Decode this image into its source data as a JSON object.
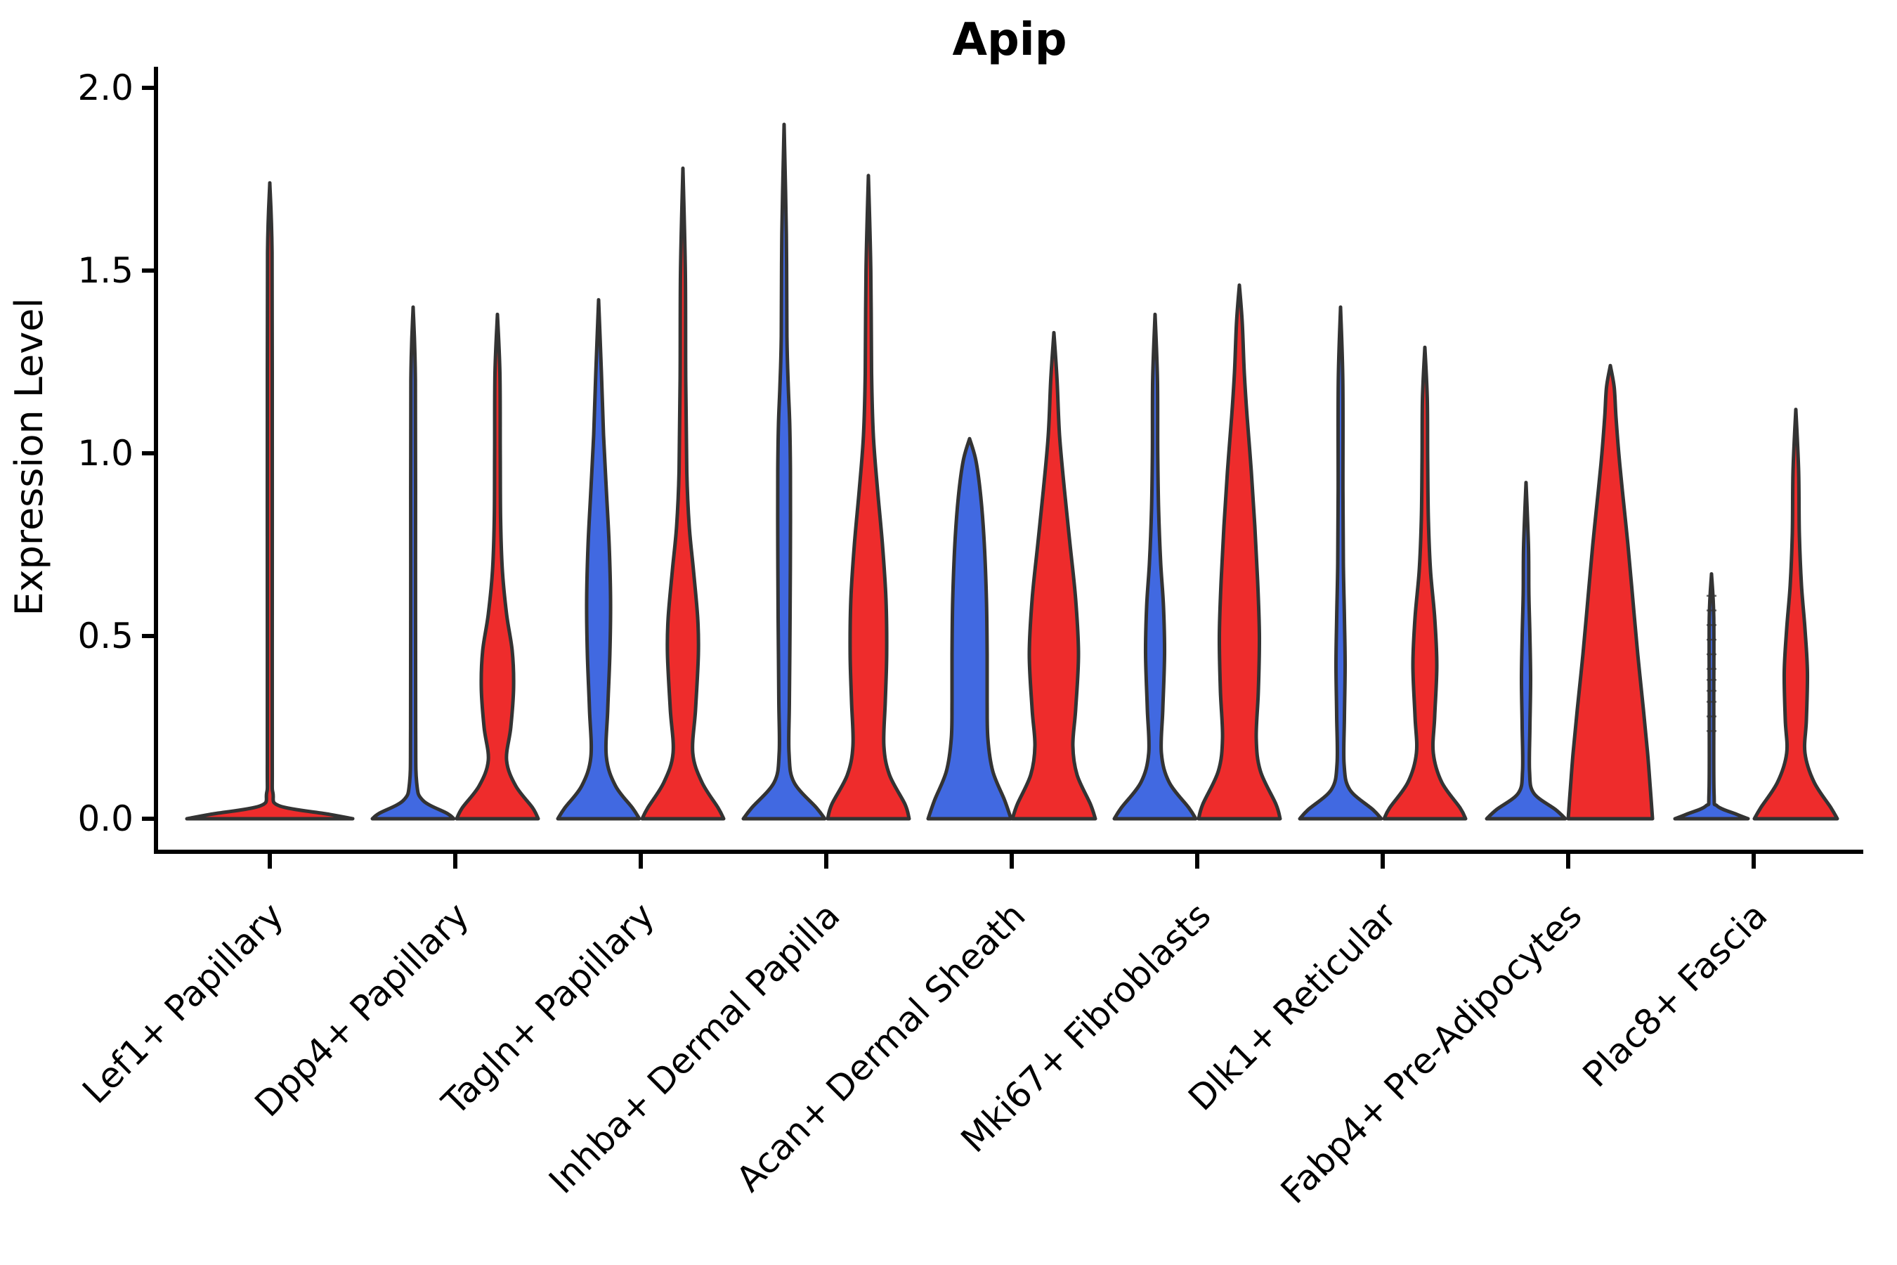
{
  "title": "Apip",
  "axes": {
    "ylabel": "Expression Level",
    "ytick_labels": [
      "0.0",
      "0.5",
      "1.0",
      "1.5",
      "2.0"
    ]
  },
  "chart_data": {
    "type": "violin",
    "title": "Apip",
    "xlabel": "",
    "ylabel": "Expression Level",
    "ylim": [
      0,
      2.05
    ],
    "grid": false,
    "legend": "none",
    "yticks": [
      0,
      0.5,
      1,
      1.5,
      2
    ],
    "ytick_labels": [
      "0.0",
      "0.5",
      "1.0",
      "1.5",
      "2.0"
    ],
    "categories": [
      "Lef1+ Papillary",
      "Dpp4+ Papillary",
      "Tagln+ Papillary",
      "Inhba+ Dermal Papilla",
      "Acan+ Dermal Sheath",
      "Mki67+ Fibroblasts",
      "Dlk1+ Reticular",
      "Fabp4+ Pre-Adipocytes",
      "Plac8+ Fascia"
    ],
    "series": [
      {
        "name": "blue",
        "color": "#4169E1"
      },
      {
        "name": "red",
        "color": "#EE2C2C"
      }
    ],
    "colors": {
      "blue": "#4169E1",
      "red": "#EE2C2C",
      "single": "#EE2C2C"
    },
    "outline_color": "#333333",
    "profile_units": "pairs of [expression_value, half_width_px]",
    "violins": [
      {
        "category_index": 0,
        "side": "single",
        "color": "single",
        "max": 1.74,
        "profile": [
          [
            0,
            118
          ],
          [
            0.012,
            85
          ],
          [
            0.035,
            14
          ],
          [
            0.07,
            4.5
          ],
          [
            0.15,
            3.5
          ],
          [
            0.6,
            3.5
          ],
          [
            1.1,
            3.5
          ],
          [
            1.55,
            3.2
          ],
          [
            1.74,
            0
          ]
        ]
      },
      {
        "category_index": 1,
        "side": "blue",
        "color": "blue",
        "max": 1.4,
        "profile": [
          [
            0,
            58
          ],
          [
            0.015,
            48
          ],
          [
            0.05,
            14
          ],
          [
            0.1,
            5
          ],
          [
            0.25,
            3.6
          ],
          [
            0.7,
            3.4
          ],
          [
            1.2,
            3.2
          ],
          [
            1.4,
            0
          ]
        ]
      },
      {
        "category_index": 1,
        "side": "red",
        "color": "red",
        "max": 1.38,
        "profile": [
          [
            0,
            58
          ],
          [
            0.03,
            50
          ],
          [
            0.09,
            26
          ],
          [
            0.16,
            13
          ],
          [
            0.25,
            19
          ],
          [
            0.36,
            23
          ],
          [
            0.46,
            21
          ],
          [
            0.56,
            13
          ],
          [
            0.68,
            7
          ],
          [
            0.82,
            4.5
          ],
          [
            1.0,
            4
          ],
          [
            1.22,
            3.5
          ],
          [
            1.38,
            0
          ]
        ]
      },
      {
        "category_index": 2,
        "side": "blue",
        "color": "blue",
        "max": 1.42,
        "profile": [
          [
            0,
            58
          ],
          [
            0.03,
            48
          ],
          [
            0.09,
            24
          ],
          [
            0.17,
            11
          ],
          [
            0.3,
            13
          ],
          [
            0.45,
            16
          ],
          [
            0.6,
            17
          ],
          [
            0.75,
            15
          ],
          [
            0.9,
            11
          ],
          [
            1.05,
            7
          ],
          [
            1.22,
            4
          ],
          [
            1.42,
            0
          ]
        ]
      },
      {
        "category_index": 2,
        "side": "red",
        "color": "red",
        "max": 1.78,
        "profile": [
          [
            0,
            58
          ],
          [
            0.03,
            50
          ],
          [
            0.1,
            27
          ],
          [
            0.18,
            14
          ],
          [
            0.3,
            18
          ],
          [
            0.45,
            22
          ],
          [
            0.55,
            21
          ],
          [
            0.68,
            15
          ],
          [
            0.8,
            9
          ],
          [
            0.95,
            5.5
          ],
          [
            1.2,
            4
          ],
          [
            1.5,
            3.4
          ],
          [
            1.78,
            0
          ]
        ]
      },
      {
        "category_index": 3,
        "side": "blue",
        "color": "blue",
        "max": 1.9,
        "profile": [
          [
            0,
            58
          ],
          [
            0.03,
            46
          ],
          [
            0.1,
            14
          ],
          [
            0.18,
            7
          ],
          [
            0.32,
            7.5
          ],
          [
            0.55,
            8.5
          ],
          [
            0.75,
            9
          ],
          [
            0.95,
            9
          ],
          [
            1.08,
            8
          ],
          [
            1.18,
            6
          ],
          [
            1.32,
            4
          ],
          [
            1.6,
            3.2
          ],
          [
            1.9,
            0
          ]
        ]
      },
      {
        "category_index": 3,
        "side": "red",
        "color": "red",
        "max": 1.76,
        "profile": [
          [
            0,
            58
          ],
          [
            0.04,
            52
          ],
          [
            0.12,
            30
          ],
          [
            0.2,
            22
          ],
          [
            0.32,
            24
          ],
          [
            0.45,
            26
          ],
          [
            0.6,
            25
          ],
          [
            0.75,
            20
          ],
          [
            0.9,
            13
          ],
          [
            1.05,
            7
          ],
          [
            1.22,
            4.5
          ],
          [
            1.5,
            3.4
          ],
          [
            1.76,
            0
          ]
        ]
      },
      {
        "category_index": 4,
        "side": "blue",
        "color": "blue",
        "max": 1.04,
        "profile": [
          [
            0,
            59
          ],
          [
            0.05,
            50
          ],
          [
            0.13,
            33
          ],
          [
            0.22,
            26
          ],
          [
            0.32,
            25
          ],
          [
            0.45,
            25
          ],
          [
            0.6,
            24
          ],
          [
            0.75,
            21
          ],
          [
            0.88,
            16
          ],
          [
            0.98,
            9
          ],
          [
            1.04,
            0
          ]
        ]
      },
      {
        "category_index": 4,
        "side": "red",
        "color": "red",
        "max": 1.33,
        "profile": [
          [
            0,
            59
          ],
          [
            0.04,
            52
          ],
          [
            0.12,
            33
          ],
          [
            0.2,
            27
          ],
          [
            0.3,
            31
          ],
          [
            0.45,
            35
          ],
          [
            0.6,
            31
          ],
          [
            0.75,
            23
          ],
          [
            0.9,
            15
          ],
          [
            1.05,
            8
          ],
          [
            1.2,
            4.5
          ],
          [
            1.33,
            0
          ]
        ]
      },
      {
        "category_index": 5,
        "side": "blue",
        "color": "blue",
        "max": 1.38,
        "profile": [
          [
            0,
            58
          ],
          [
            0.03,
            48
          ],
          [
            0.1,
            20
          ],
          [
            0.18,
            9
          ],
          [
            0.3,
            11
          ],
          [
            0.45,
            13.5
          ],
          [
            0.58,
            12
          ],
          [
            0.7,
            8
          ],
          [
            0.85,
            5
          ],
          [
            1.0,
            3.8
          ],
          [
            1.2,
            3.4
          ],
          [
            1.38,
            0
          ]
        ]
      },
      {
        "category_index": 5,
        "side": "red",
        "color": "red",
        "max": 1.46,
        "profile": [
          [
            0,
            58
          ],
          [
            0.04,
            52
          ],
          [
            0.13,
            30
          ],
          [
            0.22,
            24
          ],
          [
            0.35,
            27
          ],
          [
            0.5,
            28.5
          ],
          [
            0.65,
            26
          ],
          [
            0.8,
            22
          ],
          [
            0.95,
            17
          ],
          [
            1.1,
            11
          ],
          [
            1.22,
            7
          ],
          [
            1.36,
            4
          ],
          [
            1.46,
            0
          ]
        ]
      },
      {
        "category_index": 6,
        "side": "blue",
        "color": "blue",
        "max": 1.4,
        "profile": [
          [
            0,
            58
          ],
          [
            0.025,
            46
          ],
          [
            0.08,
            13
          ],
          [
            0.15,
            5
          ],
          [
            0.28,
            5.5
          ],
          [
            0.42,
            6.5
          ],
          [
            0.55,
            5.5
          ],
          [
            0.7,
            4
          ],
          [
            0.9,
            3.4
          ],
          [
            1.2,
            3.2
          ],
          [
            1.4,
            0
          ]
        ]
      },
      {
        "category_index": 6,
        "side": "red",
        "color": "red",
        "max": 1.29,
        "profile": [
          [
            0,
            58
          ],
          [
            0.03,
            50
          ],
          [
            0.1,
            24
          ],
          [
            0.18,
            12
          ],
          [
            0.28,
            14
          ],
          [
            0.42,
            17
          ],
          [
            0.55,
            14
          ],
          [
            0.68,
            8
          ],
          [
            0.82,
            5
          ],
          [
            0.98,
            4
          ],
          [
            1.15,
            3.4
          ],
          [
            1.29,
            0
          ]
        ]
      },
      {
        "category_index": 7,
        "side": "blue",
        "color": "blue",
        "max": 0.92,
        "profile": [
          [
            0,
            56
          ],
          [
            0.025,
            42
          ],
          [
            0.07,
            11
          ],
          [
            0.13,
            5
          ],
          [
            0.25,
            5.5
          ],
          [
            0.38,
            6.5
          ],
          [
            0.5,
            5.5
          ],
          [
            0.62,
            4
          ],
          [
            0.75,
            3.4
          ],
          [
            0.92,
            0
          ]
        ]
      },
      {
        "category_index": 7,
        "side": "red",
        "color": "red",
        "max": 1.24,
        "profile": [
          [
            0,
            60
          ],
          [
            0.08,
            57
          ],
          [
            0.18,
            53
          ],
          [
            0.3,
            47
          ],
          [
            0.45,
            39
          ],
          [
            0.6,
            32
          ],
          [
            0.75,
            25
          ],
          [
            0.9,
            17
          ],
          [
            1.0,
            12
          ],
          [
            1.1,
            8
          ],
          [
            1.18,
            5.5
          ],
          [
            1.24,
            0
          ]
        ]
      },
      {
        "category_index": 8,
        "side": "blue",
        "color": "blue",
        "max": 0.67,
        "profile": [
          [
            0,
            52
          ],
          [
            0.012,
            36
          ],
          [
            0.035,
            8
          ],
          [
            0.07,
            3.6
          ],
          [
            0.3,
            3.2
          ],
          [
            0.55,
            3.2
          ],
          [
            0.67,
            0
          ]
        ]
      },
      {
        "category_index": 8,
        "side": "red",
        "color": "red",
        "max": 1.12,
        "profile": [
          [
            0,
            59
          ],
          [
            0.03,
            50
          ],
          [
            0.1,
            26
          ],
          [
            0.18,
            13
          ],
          [
            0.27,
            15
          ],
          [
            0.4,
            16.5
          ],
          [
            0.52,
            13
          ],
          [
            0.64,
            8
          ],
          [
            0.78,
            5
          ],
          [
            0.95,
            4
          ],
          [
            1.12,
            0
          ]
        ]
      }
    ],
    "point_dashes": {
      "category_index": 8,
      "side": "blue",
      "values": [
        0.24,
        0.28,
        0.32,
        0.35,
        0.38,
        0.41,
        0.45,
        0.49,
        0.53,
        0.57,
        0.61
      ]
    }
  }
}
